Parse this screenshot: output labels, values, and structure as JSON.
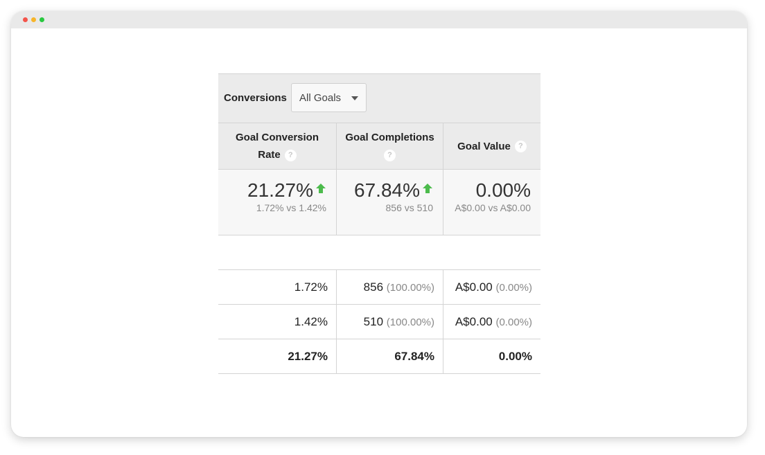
{
  "conversions": {
    "label": "Conversions",
    "selected_goal": "All Goals"
  },
  "columns": [
    {
      "label": "Goal Conversion Rate",
      "help": "?"
    },
    {
      "label": "Goal Completions",
      "help": "?"
    },
    {
      "label": "Goal Value",
      "help": "?"
    }
  ],
  "summary": [
    {
      "value": "21.27%",
      "compare": "1.72% vs 1.42%",
      "trend": "up"
    },
    {
      "value": "67.84%",
      "compare": "856 vs 510",
      "trend": "up"
    },
    {
      "value": "0.00%",
      "compare": "A$0.00 vs A$0.00",
      "trend": "none"
    }
  ],
  "rows": [
    {
      "rate": "1.72%",
      "completions": "856",
      "completions_pct": "(100.00%)",
      "value": "A$0.00",
      "value_pct": "(0.00%)"
    },
    {
      "rate": "1.42%",
      "completions": "510",
      "completions_pct": "(100.00%)",
      "value": "A$0.00",
      "value_pct": "(0.00%)"
    }
  ],
  "totals": {
    "rate": "21.27%",
    "completions": "67.84%",
    "value": "0.00%"
  },
  "colors": {
    "trend_up": "#4cbb4c",
    "header_bg": "#ebebeb"
  }
}
